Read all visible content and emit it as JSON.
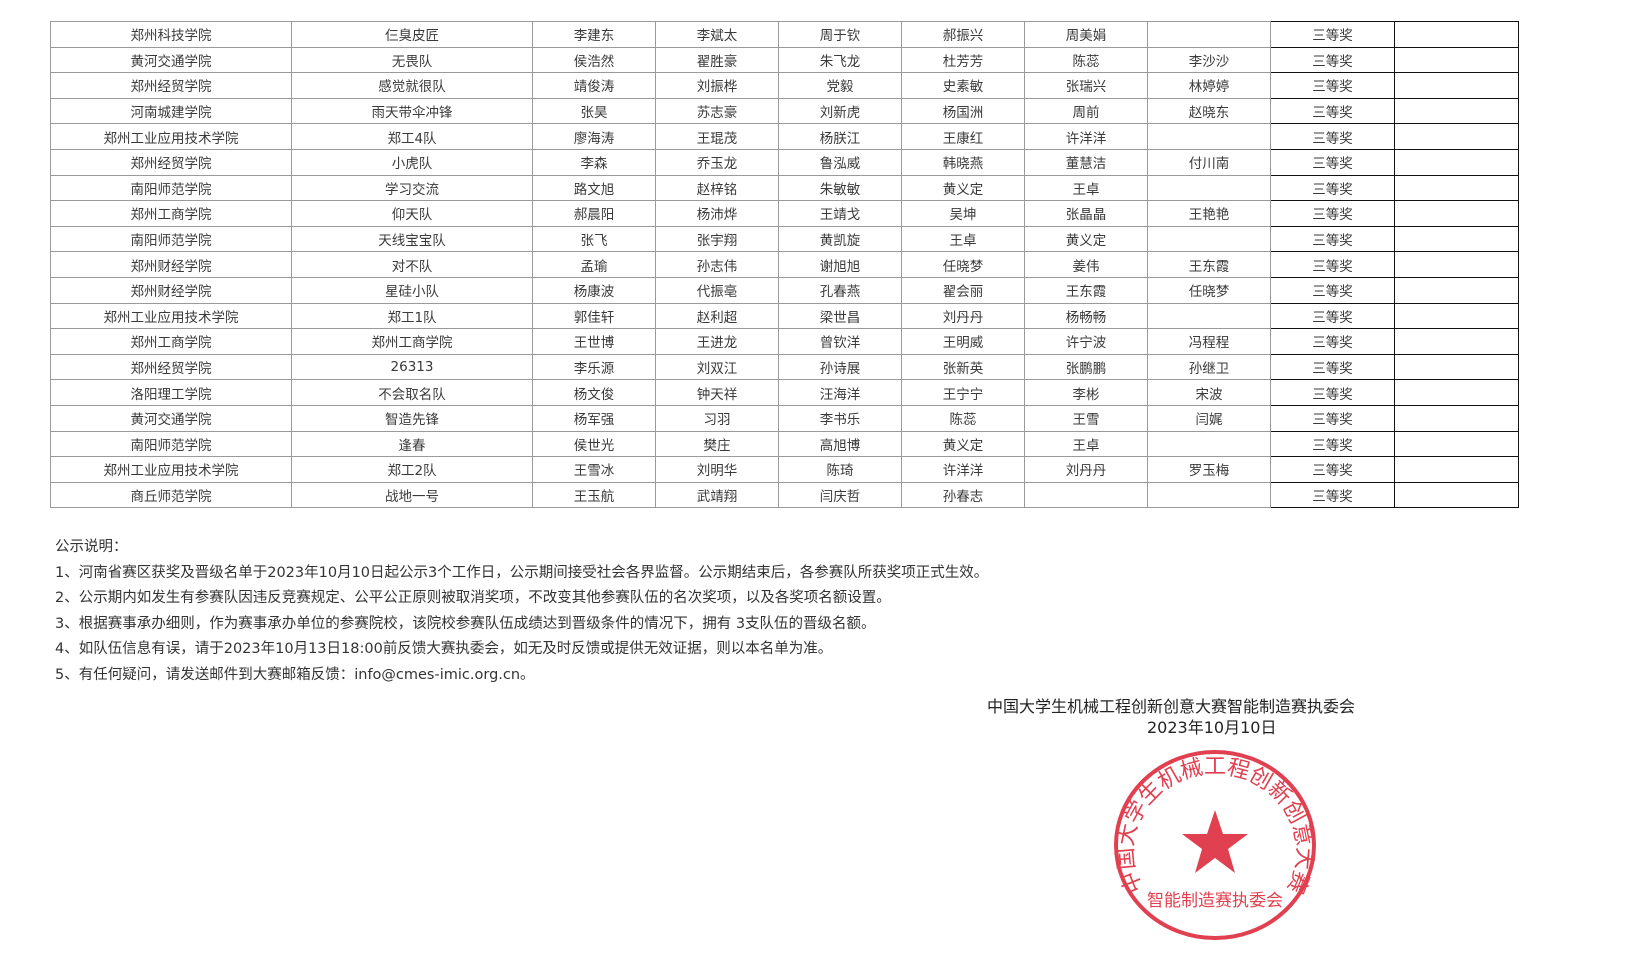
{
  "table": {
    "rows": [
      [
        "郑州科技学院",
        "仨臭皮匠",
        "李建东",
        "李斌太",
        "周于钦",
        "郝振兴",
        "周美娟",
        "",
        "三等奖",
        ""
      ],
      [
        "黄河交通学院",
        "无畏队",
        "侯浩然",
        "翟胜豪",
        "朱飞龙",
        "杜芳芳",
        "陈蕊",
        "李沙沙",
        "三等奖",
        ""
      ],
      [
        "郑州经贸学院",
        "感觉就很队",
        "靖俊涛",
        "刘振桦",
        "党毅",
        "史素敏",
        "张瑞兴",
        "林婷婷",
        "三等奖",
        ""
      ],
      [
        "河南城建学院",
        "雨天带伞冲锋",
        "张昊",
        "苏志豪",
        "刘新虎",
        "杨国洲",
        "周前",
        "赵晓东",
        "三等奖",
        ""
      ],
      [
        "郑州工业应用技术学院",
        "郑工4队",
        "廖海涛",
        "王琨茂",
        "杨朕江",
        "王康红",
        "许洋洋",
        "",
        "三等奖",
        ""
      ],
      [
        "郑州经贸学院",
        "小虎队",
        "李森",
        "乔玉龙",
        "鲁泓威",
        "韩晓燕",
        "董慧洁",
        "付川南",
        "三等奖",
        ""
      ],
      [
        "南阳师范学院",
        "学习交流",
        "路文旭",
        "赵梓铭",
        "朱敏敏",
        "黄义定",
        "王卓",
        "",
        "三等奖",
        ""
      ],
      [
        "郑州工商学院",
        "仰天队",
        "郝晨阳",
        "杨沛烨",
        "王靖戈",
        "吴坤",
        "张晶晶",
        "王艳艳",
        "三等奖",
        ""
      ],
      [
        "南阳师范学院",
        "天线宝宝队",
        "张飞",
        "张宇翔",
        "黄凯旋",
        "王卓",
        "黄义定",
        "",
        "三等奖",
        ""
      ],
      [
        "郑州财经学院",
        "对不队",
        "孟瑜",
        "孙志伟",
        "谢旭旭",
        "任晓梦",
        "姜伟",
        "王东霞",
        "三等奖",
        ""
      ],
      [
        "郑州财经学院",
        "星硅小队",
        "杨康波",
        "代振亳",
        "孔春燕",
        "翟会丽",
        "王东霞",
        "任晓梦",
        "三等奖",
        ""
      ],
      [
        "郑州工业应用技术学院",
        "郑工1队",
        "郭佳轩",
        "赵利超",
        "梁世昌",
        "刘丹丹",
        "杨畅畅",
        "",
        "三等奖",
        ""
      ],
      [
        "郑州工商学院",
        "郑州工商学院",
        "王世博",
        "王进龙",
        "曾钦洋",
        "王明威",
        "许宁波",
        "冯程程",
        "三等奖",
        ""
      ],
      [
        "郑州经贸学院",
        "26313",
        "李乐源",
        "刘双江",
        "孙诗展",
        "张新英",
        "张鹏鹏",
        "孙继卫",
        "三等奖",
        ""
      ],
      [
        "洛阳理工学院",
        "不会取名队",
        "杨文俊",
        "钟天祥",
        "汪海洋",
        "王宁宁",
        "李彬",
        "宋波",
        "三等奖",
        ""
      ],
      [
        "黄河交通学院",
        "智造先锋",
        "杨军强",
        "习羽",
        "李书乐",
        "陈蕊",
        "王雪",
        "闫娓",
        "三等奖",
        ""
      ],
      [
        "南阳师范学院",
        "逢春",
        "侯世光",
        "樊庄",
        "高旭博",
        "黄义定",
        "王卓",
        "",
        "三等奖",
        ""
      ],
      [
        "郑州工业应用技术学院",
        "郑工2队",
        "王雪冰",
        "刘明华",
        "陈琦",
        "许洋洋",
        "刘丹丹",
        "罗玉梅",
        "三等奖",
        ""
      ],
      [
        "商丘师范学院",
        "战地一号",
        "王玉航",
        "武靖翔",
        "闫庆哲",
        "孙春志",
        "",
        "",
        "三等奖",
        ""
      ]
    ]
  },
  "notes": {
    "title": "公示说明：",
    "items": [
      "1、河南省赛区获奖及晋级名单于2023年10月10日起公示3个工作日，公示期间接受社会各界监督。公示期结束后，各参赛队所获奖项正式生效。",
      "2、公示期内如发生有参赛队因违反竞赛规定、公平公正原则被取消奖项，不改变其他参赛队伍的名次奖项，以及各奖项名额设置。",
      "3、根据赛事承办细则，作为赛事承办单位的参赛院校，该院校参赛队伍成绩达到晋级条件的情况下，拥有 3支队伍的晋级名额。",
      "4、如队伍信息有误，请于2023年10月13日18:00前反馈大赛执委会，如无及时反馈或提供无效证据，则以本名单为准。",
      "5、有任何疑问，请发送邮件到大赛邮箱反馈：info@cmes-imic.org.cn。"
    ]
  },
  "signature": {
    "org": "中国大学生机械工程创新创意大赛智能制造赛执委会",
    "date": "2023年10月10日"
  },
  "stamp": {
    "ring_text": "中国大学生机械工程创新创意大赛",
    "bottom_text": "智能制造赛执委会",
    "color": "#e0404f"
  }
}
